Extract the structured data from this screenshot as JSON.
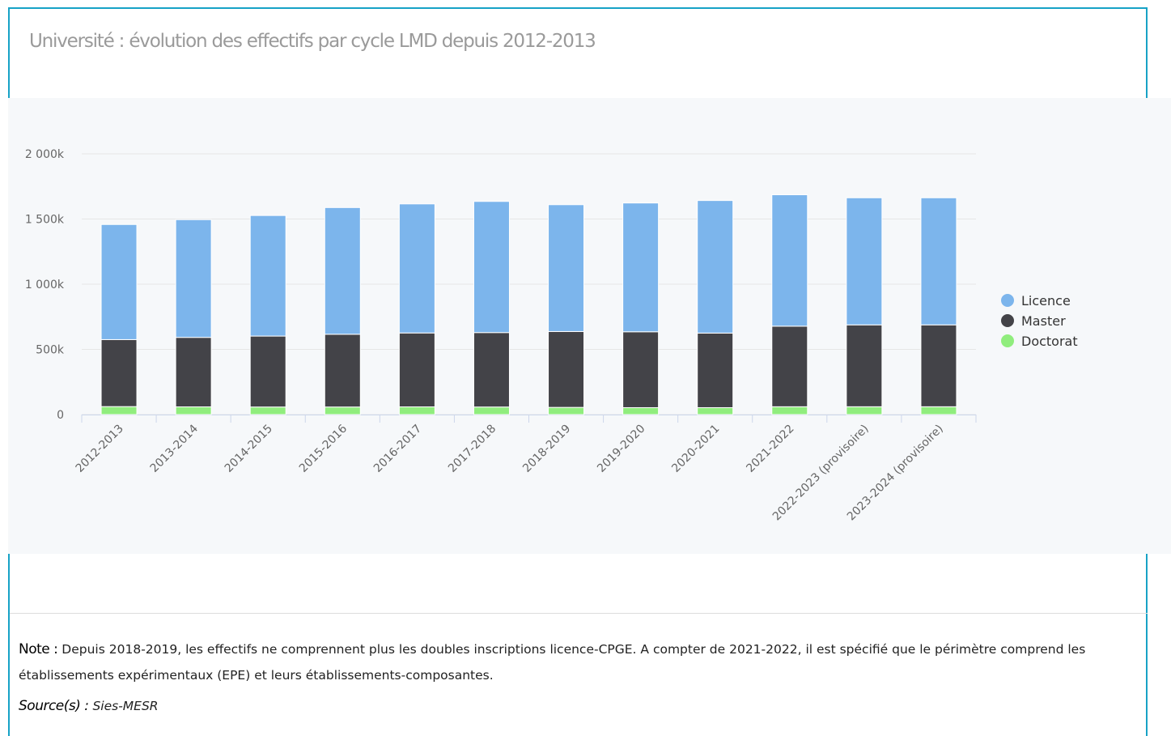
{
  "title": "Université : évolution des effectifs par cycle LMD depuis 2012-2013",
  "note": {
    "label": "Note :",
    "text": " Depuis 2018-2019, les effectifs ne comprennent plus les doubles inscriptions licence-CPGE. A compter de 2021-2022, il est spécifié que le périmètre comprend les établissements expérimentaux (EPE) et leurs établissements-composantes."
  },
  "source": {
    "label": "Source(s) :",
    "text": " Sies-MESR"
  },
  "colors": {
    "frame": "#17a2c6",
    "chart_background": "#f6f8fa",
    "gridline": "#e6e6e6",
    "axis": "#ccd6eb",
    "tick_text": "#666666"
  },
  "chart_data": {
    "type": "bar",
    "stacked": true,
    "categories": [
      "2012-2013",
      "2013-2014",
      "2014-2015",
      "2015-2016",
      "2016-2017",
      "2017-2018",
      "2018-2019",
      "2019-2020",
      "2020-2021",
      "2021-2022",
      "2022-2023 (provisoire)",
      "2023-2024 (provisoire)"
    ],
    "series": [
      {
        "name": "Doctorat",
        "color": "#90ed7d",
        "values": [
          61,
          59,
          58,
          58,
          59,
          58,
          55,
          53,
          53,
          60,
          60,
          60
        ]
      },
      {
        "name": "Master",
        "color": "#434348",
        "values": [
          514,
          533,
          544,
          558,
          567,
          571,
          582,
          582,
          572,
          618,
          628,
          628
        ]
      },
      {
        "name": "Licence",
        "color": "#7cb5ec",
        "values": [
          883,
          903,
          925,
          972,
          990,
          1006,
          973,
          988,
          1017,
          1008,
          975,
          975
        ]
      }
    ],
    "legend_order": [
      "Licence",
      "Master",
      "Doctorat"
    ],
    "y_ticks": [
      0,
      500,
      1000,
      1500,
      2000
    ],
    "y_tick_labels": [
      "0",
      "500k",
      "1 000k",
      "1 500k",
      "2 000k"
    ],
    "ylim": [
      0,
      2000
    ],
    "unit": "k",
    "grid": true,
    "legend_position": "right",
    "xlabel": "",
    "ylabel": ""
  }
}
